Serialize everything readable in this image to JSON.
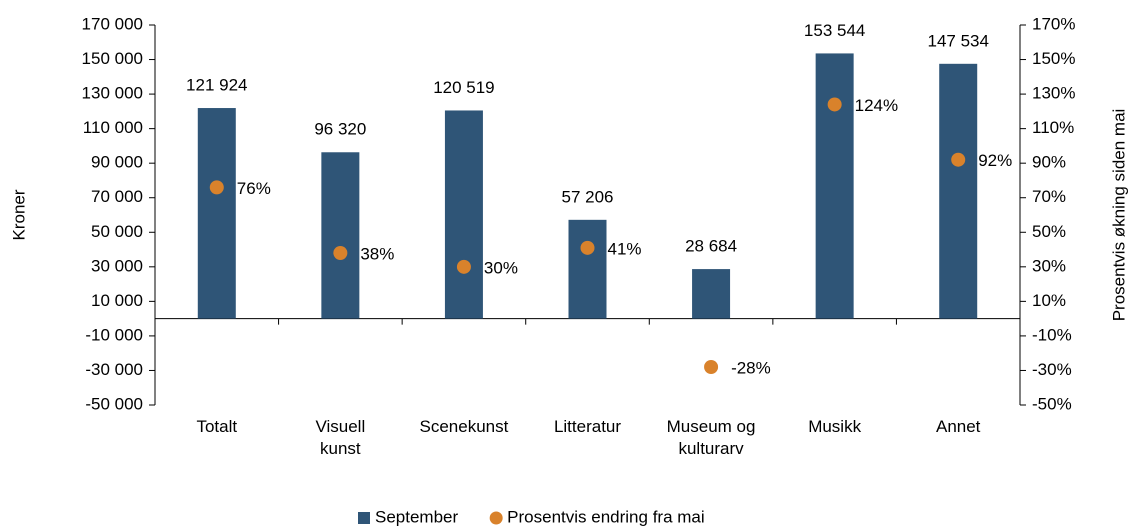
{
  "chart_data": {
    "type": "bar",
    "categories": [
      "Totalt",
      "Visuell\nkunst",
      "Scenekunst",
      "Litteratur",
      "Museum og\nkulturarv",
      "Musikk",
      "Annet"
    ],
    "series": [
      {
        "name": "September",
        "type": "bar",
        "axis": "y",
        "color": "#2f5577",
        "values": [
          121924,
          96320,
          120519,
          57206,
          28684,
          153544,
          147534
        ],
        "value_labels": [
          "121 924",
          "96 320",
          "120 519",
          "57 206",
          "28 684",
          "153 544",
          "147 534"
        ]
      },
      {
        "name": "Prosentvis endring fra mai",
        "type": "scatter",
        "axis": "y2",
        "color": "#d9822b",
        "values": [
          76,
          38,
          30,
          41,
          -28,
          124,
          92
        ],
        "value_labels": [
          "76%",
          "38%",
          "30%",
          "41%",
          "-28%",
          "124%",
          "92%"
        ]
      }
    ],
    "ylabel": "Kroner",
    "y2label": "Prosentvis økning siden mai",
    "ylim": [
      -50000,
      170000
    ],
    "yticks": [
      {
        "value": -50000,
        "label": "-50 000"
      },
      {
        "value": -30000,
        "label": "-30 000"
      },
      {
        "value": -10000,
        "label": "-10 000"
      },
      {
        "value": 10000,
        "label": "10 000"
      },
      {
        "value": 30000,
        "label": "30 000"
      },
      {
        "value": 50000,
        "label": "50 000"
      },
      {
        "value": 70000,
        "label": "70 000"
      },
      {
        "value": 90000,
        "label": "90 000"
      },
      {
        "value": 110000,
        "label": "110 000"
      },
      {
        "value": 130000,
        "label": "130 000"
      },
      {
        "value": 150000,
        "label": "150 000"
      },
      {
        "value": 170000,
        "label": "170 000"
      }
    ],
    "y2lim": [
      -50,
      170
    ],
    "y2ticks": [
      {
        "value": -50,
        "label": "-50%"
      },
      {
        "value": -30,
        "label": "-30%"
      },
      {
        "value": -10,
        "label": "-10%"
      },
      {
        "value": 10,
        "label": "10%"
      },
      {
        "value": 30,
        "label": "30%"
      },
      {
        "value": 50,
        "label": "50%"
      },
      {
        "value": 70,
        "label": "70%"
      },
      {
        "value": 90,
        "label": "90%"
      },
      {
        "value": 110,
        "label": "110%"
      },
      {
        "value": 130,
        "label": "130%"
      },
      {
        "value": 150,
        "label": "150%"
      },
      {
        "value": 170,
        "label": "170%"
      }
    ],
    "legend": "bottom"
  }
}
